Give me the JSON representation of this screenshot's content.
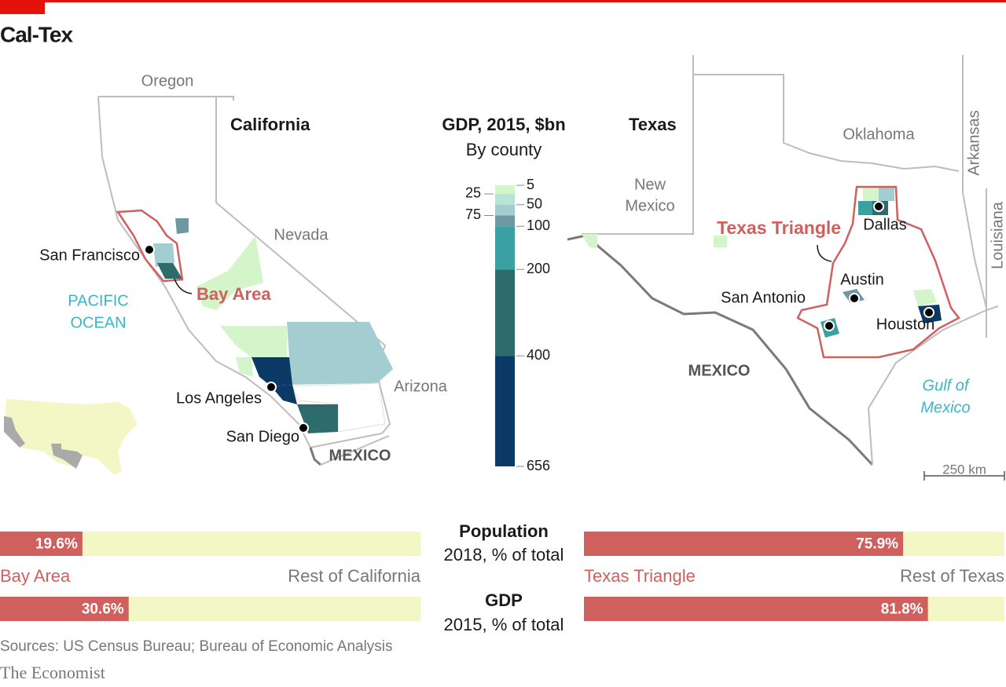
{
  "title": "Cal-Tex",
  "california": {
    "name": "California",
    "neighbors": [
      "Oregon",
      "Nevada",
      "Arizona"
    ],
    "country": "MEXICO",
    "ocean": [
      "PACIFIC",
      "OCEAN"
    ],
    "cities": [
      "San Francisco",
      "Los Angeles",
      "San Diego"
    ],
    "region": "Bay Area"
  },
  "texas": {
    "name": "Texas",
    "neighbors": [
      "Oklahoma",
      "Arkansas",
      "Louisiana"
    ],
    "new_mexico": [
      "New",
      "Mexico"
    ],
    "country": "MEXICO",
    "gulf": [
      "Gulf of",
      "Mexico"
    ],
    "cities": [
      "Dallas",
      "Austin",
      "San Antonio",
      "Houston"
    ],
    "region": "Texas Triangle",
    "scale": "250 km"
  },
  "legend": {
    "title": "GDP, 2015, $bn",
    "subtitle": "By county",
    "ticks": [
      5,
      25,
      50,
      75,
      100,
      200,
      400,
      656
    ],
    "colors": [
      "#d4f5c9",
      "#b9e3d6",
      "#a3cdd1",
      "#6f98a3",
      "#3aa0a2",
      "#2e6b6c",
      "#0b3a66"
    ]
  },
  "comparison": {
    "xlim": [
      0,
      100
    ],
    "color": "#d0605e",
    "track": "#f3f7c5",
    "measures": [
      {
        "name": "Population",
        "detail": "2018, % of total"
      },
      {
        "name": "GDP",
        "detail": "2015, % of total"
      }
    ],
    "panels": [
      {
        "region": "Bay Area",
        "rest": "Rest of California",
        "values": [
          19.6,
          30.6
        ],
        "value_labels": [
          "19.6%",
          "30.6%"
        ]
      },
      {
        "region": "Texas Triangle",
        "rest": "Rest of Texas",
        "values": [
          75.9,
          81.8
        ],
        "value_labels": [
          "75.9%",
          "81.8%"
        ]
      }
    ]
  },
  "source": "Sources: US Census Bureau; Bureau of Economic Analysis",
  "publisher": "The Economist"
}
